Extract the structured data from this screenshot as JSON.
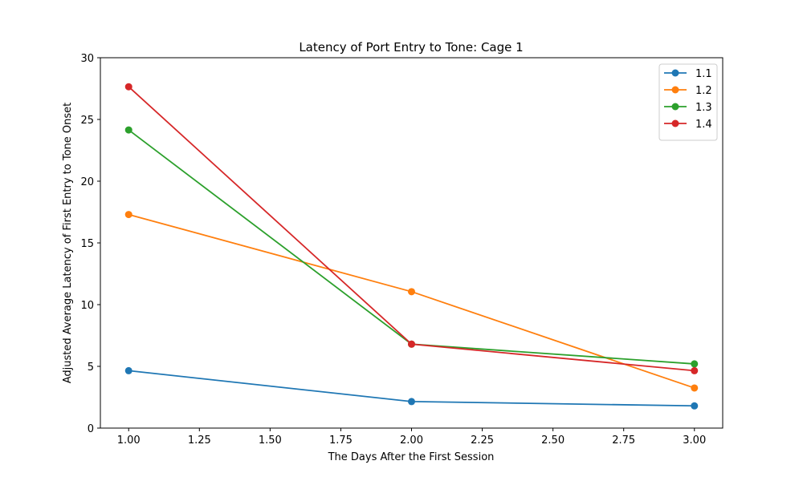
{
  "chart_data": {
    "type": "line",
    "title": "Latency of Port Entry to Tone: Cage 1",
    "xlabel": "The Days After the First Session",
    "ylabel": "Adjusted Average Latency of First Entry to Tone Onset",
    "xlim": [
      0.9,
      3.1
    ],
    "ylim": [
      0,
      30
    ],
    "xticks": [
      "1.00",
      "1.25",
      "1.50",
      "1.75",
      "2.00",
      "2.25",
      "2.50",
      "2.75",
      "3.00"
    ],
    "xtick_values": [
      1.0,
      1.25,
      1.5,
      1.75,
      2.0,
      2.25,
      2.5,
      2.75,
      3.0
    ],
    "yticks": [
      "0",
      "5",
      "10",
      "15",
      "20",
      "25",
      "30"
    ],
    "ytick_values": [
      0,
      5,
      10,
      15,
      20,
      25,
      30
    ],
    "grid": false,
    "legend_position": "top-right",
    "x": [
      1.0,
      2.0,
      3.0
    ],
    "series": [
      {
        "name": "1.1",
        "color": "#1f77b4",
        "values": [
          4.65,
          2.15,
          1.8
        ]
      },
      {
        "name": "1.2",
        "color": "#ff7f0e",
        "values": [
          17.3,
          11.05,
          3.25
        ]
      },
      {
        "name": "1.3",
        "color": "#2ca02c",
        "values": [
          24.15,
          6.8,
          5.2
        ]
      },
      {
        "name": "1.4",
        "color": "#d62728",
        "values": [
          27.65,
          6.8,
          4.65
        ]
      }
    ]
  }
}
